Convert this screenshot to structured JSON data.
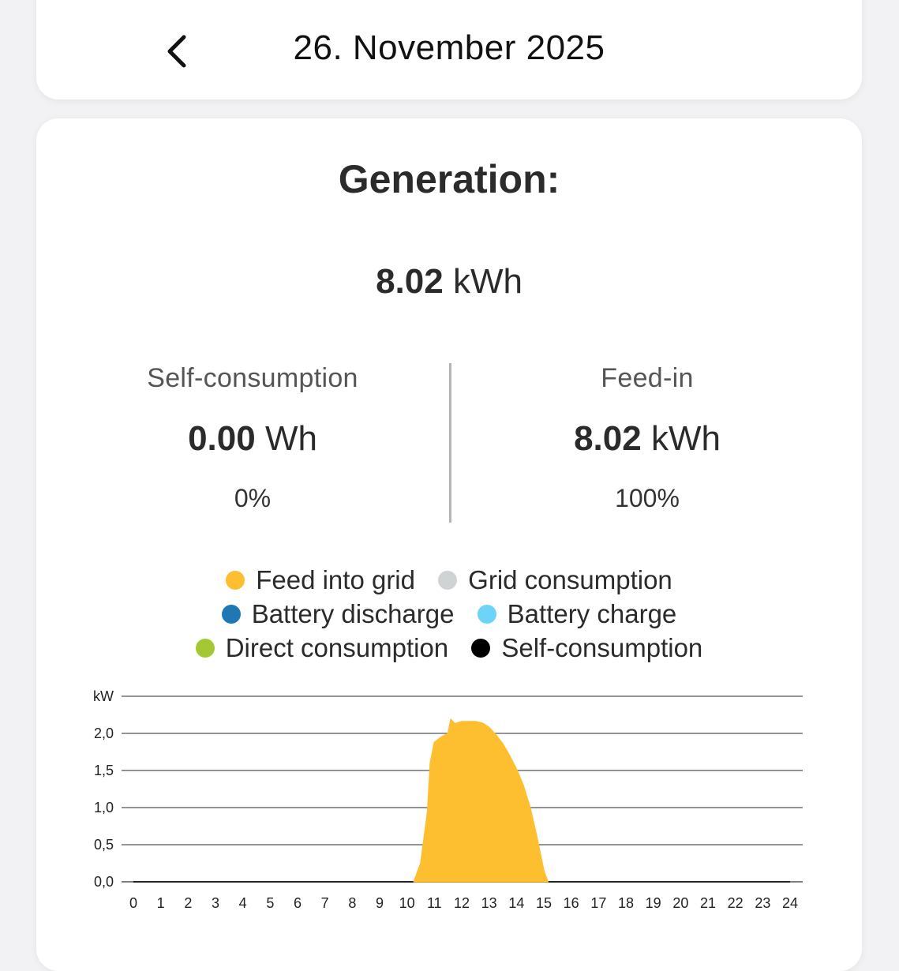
{
  "header": {
    "date": "26. November 2025",
    "back_icon": "chevron-left-icon"
  },
  "generation": {
    "title": "Generation:",
    "total_value": "8.02",
    "total_unit": "kWh"
  },
  "self_consumption": {
    "label": "Self-consumption",
    "value": "0.00",
    "unit": "Wh",
    "percent": "0%"
  },
  "feed_in": {
    "label": "Feed-in",
    "value": "8.02",
    "unit": "kWh",
    "percent": "100%"
  },
  "legend": [
    {
      "label": "Feed into grid",
      "color": "#fdbf2f"
    },
    {
      "label": "Grid consumption",
      "color": "#cfd3d4"
    },
    {
      "label": "Battery discharge",
      "color": "#1f77b4"
    },
    {
      "label": "Battery charge",
      "color": "#6dd3f8"
    },
    {
      "label": "Direct consumption",
      "color": "#a5c832"
    },
    {
      "label": "Self-consumption",
      "color": "#000000"
    }
  ],
  "chart_data": {
    "type": "area",
    "ylabel": "kW",
    "ylim": [
      0,
      2.5
    ],
    "yticks": [
      "0,0",
      "0,5",
      "1,0",
      "1,5",
      "2,0"
    ],
    "xlim": [
      0,
      24
    ],
    "xticks": [
      "0",
      "1",
      "2",
      "3",
      "4",
      "5",
      "6",
      "7",
      "8",
      "9",
      "10",
      "11",
      "12",
      "13",
      "14",
      "15",
      "16",
      "17",
      "18",
      "19",
      "20",
      "21",
      "22",
      "23",
      "24"
    ],
    "grid": true,
    "series": [
      {
        "name": "Feed into grid",
        "color": "#fdbf2f",
        "x": [
          10.25,
          10.5,
          10.75,
          10.85,
          11.0,
          11.25,
          11.5,
          11.6,
          11.75,
          12.0,
          12.25,
          12.5,
          12.75,
          13.0,
          13.25,
          13.5,
          13.75,
          14.0,
          14.25,
          14.5,
          14.75,
          15.0,
          15.15
        ],
        "y": [
          0.0,
          0.25,
          0.95,
          1.6,
          1.88,
          1.95,
          2.0,
          2.19,
          2.13,
          2.16,
          2.16,
          2.16,
          2.14,
          2.08,
          1.98,
          1.86,
          1.7,
          1.52,
          1.3,
          1.0,
          0.6,
          0.15,
          0.0
        ]
      }
    ]
  }
}
